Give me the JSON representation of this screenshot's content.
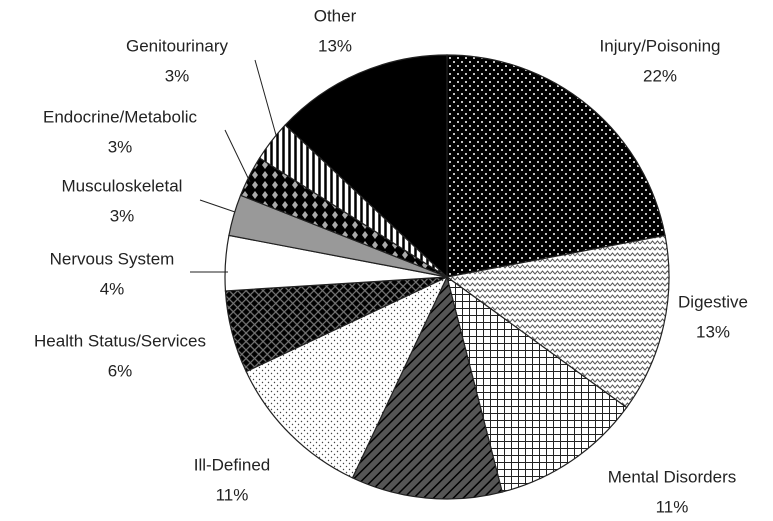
{
  "chart_data": {
    "type": "pie",
    "categories": [
      "Injury/Poisoning",
      "Digestive",
      "Mental Disorders",
      null,
      "Ill-Defined",
      "Health Status/Services",
      "Nervous System",
      "Musculoskeletal",
      "Endocrine/Metabolic",
      "Genitourinary",
      "Other"
    ],
    "values": [
      22,
      13,
      11,
      11,
      11,
      6,
      4,
      3,
      3,
      3,
      13
    ],
    "value_labels": [
      "22%",
      "13%",
      "11%",
      null,
      "11%",
      "6%",
      "4%",
      "3%",
      "3%",
      "3%",
      "13%"
    ]
  }
}
